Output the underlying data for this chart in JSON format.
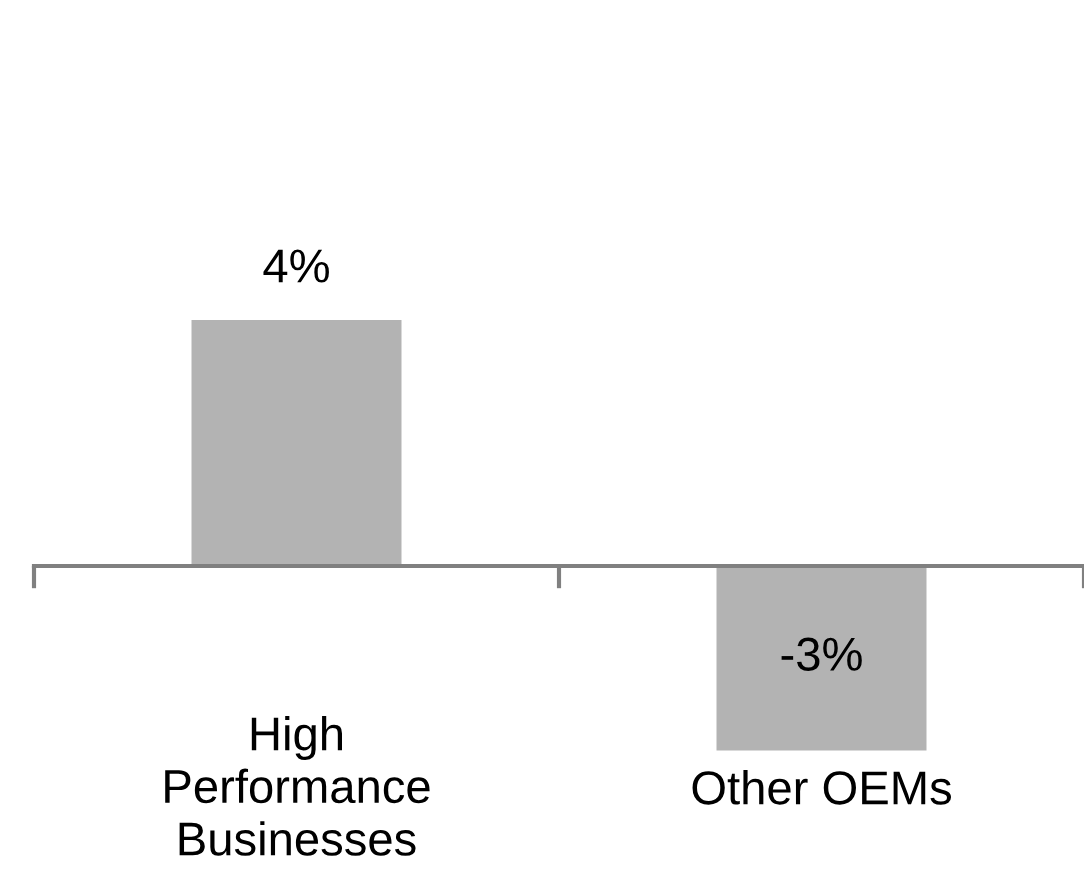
{
  "chart_data": {
    "type": "bar",
    "categories": [
      "High\nPerformance\nBusinesses",
      "Other OEMs"
    ],
    "values": [
      4,
      -3
    ],
    "color": "#b3b3b3",
    "value_labels": [
      "4%",
      "-3%"
    ],
    "grid": false,
    "legend": false,
    "tick_labels": "x"
  }
}
